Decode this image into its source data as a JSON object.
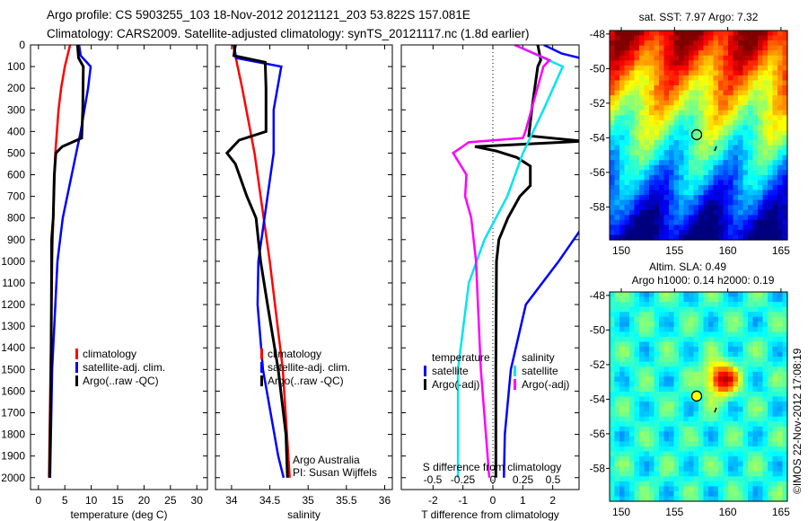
{
  "title_line1": "Argo profile: CS 5903255_103 18-Nov-2012 20121121_203 53.822S 157.081E",
  "title_line2": "Climatology: CARS2009. Satellite-adjusted climatology: synTS_20121117.nc (1.8d earlier)",
  "credit": "©IMOS 22-Nov-2012 17:08:19",
  "colors": {
    "climatology": "#ff0000",
    "satellite": "#0000ff",
    "argo": "#000000",
    "sal_sat": "#00e5ee",
    "sal_argo": "#ff00ff"
  },
  "chart_data": [
    {
      "type": "line",
      "xlabel": "temperature (deg C)",
      "xlim": [
        -1.5,
        32
      ],
      "ylim": [
        2055,
        0
      ],
      "xticks": [
        "0",
        "5",
        "10",
        "15",
        "20",
        "25",
        "30"
      ],
      "yticks": [
        "0",
        "100",
        "200",
        "300",
        "400",
        "500",
        "600",
        "700",
        "800",
        "900",
        "1000",
        "1100",
        "1200",
        "1300",
        "1400",
        "1500",
        "1600",
        "1700",
        "1800",
        "1900",
        "2000"
      ],
      "legend": [
        "climatology",
        "satellite-adj. clim.",
        "Argo(..raw -QC)"
      ],
      "series": [
        {
          "name": "climatology",
          "color": "#ff0000",
          "depth": [
            0,
            100,
            200,
            300,
            500,
            700,
            1000,
            1500,
            2000
          ],
          "values": [
            6.0,
            5.0,
            4.3,
            3.8,
            3.2,
            2.9,
            2.6,
            2.3,
            2.0
          ]
        },
        {
          "name": "satellite-adj. clim.",
          "color": "#0000ff",
          "depth": [
            0,
            50,
            100,
            200,
            400,
            600,
            800,
            1000,
            1500,
            2000
          ],
          "values": [
            7.7,
            8.0,
            9.9,
            9.4,
            8.0,
            6.3,
            4.6,
            3.6,
            2.6,
            2.2
          ]
        },
        {
          "name": "Argo",
          "color": "#000000",
          "depth": [
            0,
            60,
            100,
            300,
            430,
            470,
            500,
            600,
            800,
            900,
            1000,
            1500,
            2000
          ],
          "values": [
            7.4,
            7.6,
            8.5,
            8.4,
            8.2,
            4.5,
            3.3,
            3.0,
            2.8,
            2.5,
            2.5,
            2.4,
            2.1
          ]
        }
      ]
    },
    {
      "type": "line",
      "xlabel": "salinity",
      "xlim": [
        33.79,
        36.1
      ],
      "ylim": [
        2055,
        0
      ],
      "xticks": [
        "34",
        "34.5",
        "35",
        "35.5",
        "36"
      ],
      "legend": [
        "climatology",
        "satellite-adj. clim.",
        "Argo(..raw -QC)"
      ],
      "annotation": [
        "Argo Australia",
        "PI: Susan Wijffels"
      ],
      "series": [
        {
          "name": "climatology",
          "color": "#ff0000",
          "depth": [
            0,
            200,
            500,
            1000,
            1500,
            2000
          ],
          "values": [
            34.02,
            34.14,
            34.3,
            34.5,
            34.67,
            34.76
          ]
        },
        {
          "name": "satellite-adj. clim.",
          "color": "#0000ff",
          "depth": [
            0,
            60,
            100,
            300,
            500,
            800,
            1000,
            1200,
            1500,
            1900,
            2000
          ],
          "values": [
            34.03,
            34.06,
            34.65,
            34.55,
            34.55,
            34.43,
            34.35,
            34.34,
            34.41,
            34.61,
            34.68
          ]
        },
        {
          "name": "Argo",
          "color": "#000000",
          "depth": [
            0,
            50,
            80,
            200,
            400,
            440,
            500,
            550,
            700,
            800,
            1000,
            1200,
            1500,
            1800,
            2000
          ],
          "values": [
            34.05,
            34.03,
            34.44,
            34.45,
            34.45,
            34.1,
            33.94,
            34.05,
            34.2,
            34.32,
            34.38,
            34.47,
            34.61,
            34.71,
            34.73
          ]
        }
      ]
    },
    {
      "type": "line",
      "xlabel": "T difference from climatology",
      "xlabel2": "S difference from climatology",
      "xlim": [
        -3.06,
        2.88
      ],
      "ylim": [
        2055,
        0
      ],
      "xticks": [
        "-2",
        "-1",
        "0",
        "1",
        "2"
      ],
      "xticks2": [
        "-0.5",
        "-0.25",
        "0",
        "0.25",
        "0.5"
      ],
      "legend_t": {
        "header": "temperature",
        "items": [
          "satellite",
          "Argo(-adj)"
        ]
      },
      "legend_s": {
        "header": "salinity",
        "items": [
          "satellite",
          "Argo(-adj)"
        ]
      },
      "series": [
        {
          "name": "T satellite",
          "color": "#0000ff",
          "scale": "T",
          "depth": [
            0,
            40,
            70,
            860,
            1000,
            1200,
            1500,
            1800,
            2000
          ],
          "values": [
            1.7,
            2.3,
            3.2,
            2.9,
            2.2,
            1.1,
            0.6,
            0.4,
            0.37
          ]
        },
        {
          "name": "T Argo(-adj)",
          "color": "#000000",
          "scale": "T",
          "depth": [
            0,
            70,
            100,
            300,
            420,
            445,
            470,
            490,
            520,
            560,
            650,
            700,
            800,
            900,
            1000,
            1500,
            2000
          ],
          "values": [
            1.5,
            1.6,
            1.5,
            1.3,
            1.2,
            3.0,
            -0.6,
            0.1,
            0.8,
            1.25,
            1.25,
            0.9,
            0.5,
            0.2,
            0.12,
            0.1,
            0.1
          ]
        },
        {
          "name": "S satellite",
          "color": "#00e5ee",
          "scale": "S",
          "depth": [
            0,
            100,
            300,
            500,
            700,
            900,
            1100,
            1500,
            2000
          ],
          "values": [
            0.18,
            0.58,
            0.42,
            0.25,
            0.12,
            -0.07,
            -0.2,
            -0.29,
            -0.29
          ]
        },
        {
          "name": "S Argo(-adj)",
          "color": "#ff00ff",
          "scale": "S",
          "depth": [
            0,
            70,
            100,
            400,
            430,
            450,
            500,
            600,
            700,
            800,
            1000,
            1500,
            2000
          ],
          "values": [
            0.18,
            0.47,
            0.42,
            0.27,
            0.25,
            -0.2,
            -0.33,
            -0.22,
            -0.23,
            -0.18,
            -0.14,
            -0.1,
            -0.03
          ]
        }
      ]
    },
    {
      "type": "heatmap",
      "title": "sat. SST: 7.97 Argo: 7.32",
      "xticks": [
        "150",
        "155",
        "160",
        "165"
      ],
      "yticks": [
        "-48",
        "-50",
        "-52",
        "-54",
        "-56",
        "-58"
      ],
      "xlim": [
        148.9,
        165.6
      ],
      "ylim": [
        -59.9,
        -47.8
      ],
      "argo_position": [
        157.081,
        -53.822
      ]
    },
    {
      "type": "heatmap",
      "title": "Altim. SLA: 0.49",
      "subtitle": "Argo h1000: 0.14 h2000: 0.19",
      "xticks": [
        "150",
        "155",
        "160",
        "165"
      ],
      "yticks": [
        "-48",
        "-50",
        "-52",
        "-54",
        "-56",
        "-58"
      ],
      "xlim": [
        148.9,
        165.6
      ],
      "ylim": [
        -59.9,
        -47.8
      ],
      "argo_position": [
        157.081,
        -53.822
      ]
    }
  ]
}
